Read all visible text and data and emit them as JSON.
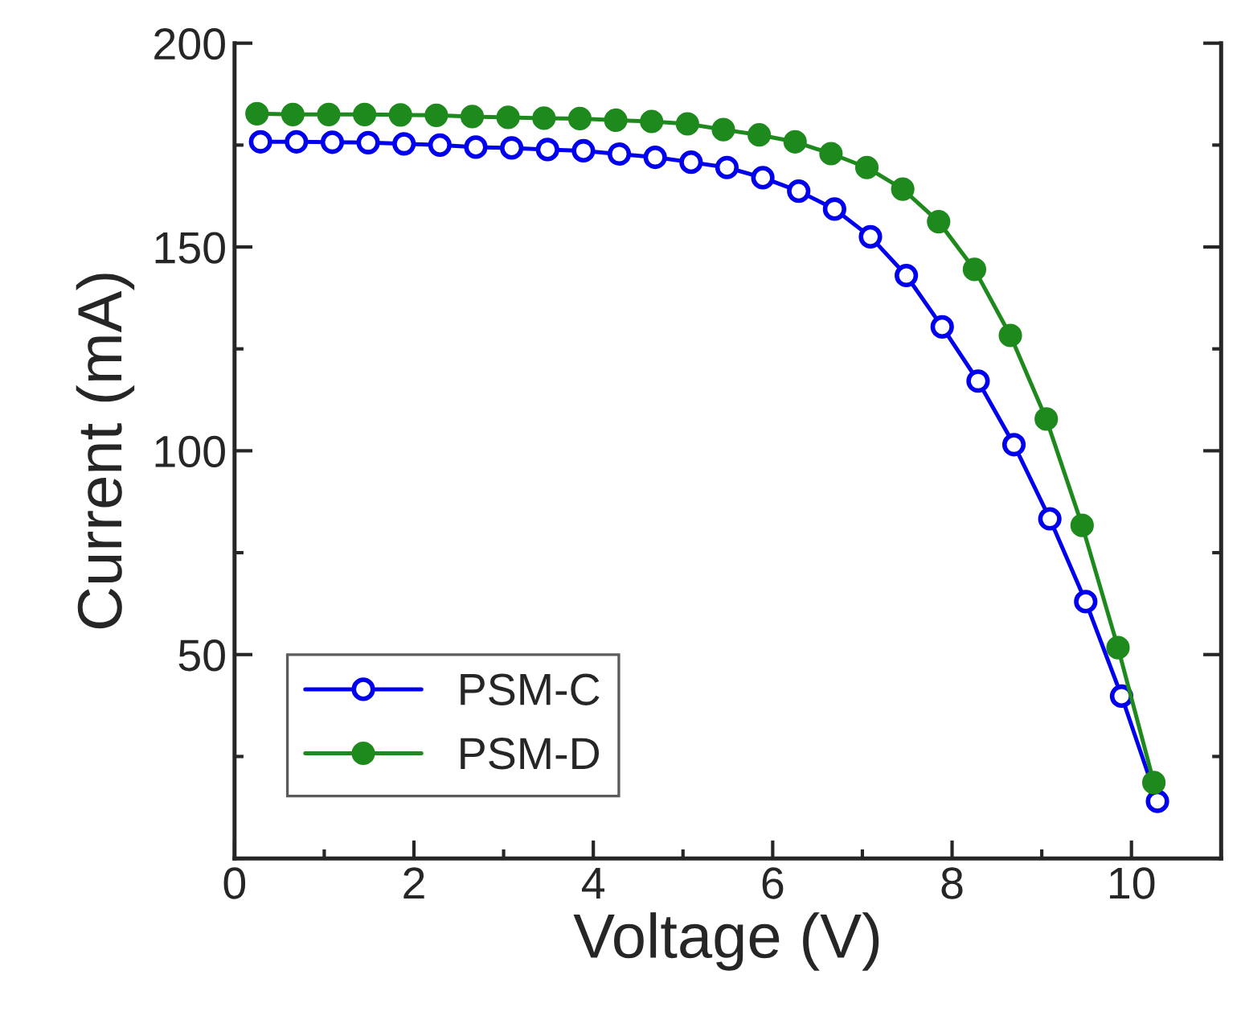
{
  "chart_data": {
    "type": "line",
    "xlabel": "Voltage (V)",
    "ylabel": "Current (mA)",
    "xlim": [
      0,
      11
    ],
    "xticks": [
      0,
      2,
      4,
      6,
      8,
      10
    ],
    "ylim": [
      0,
      200
    ],
    "yticks": [
      50,
      100,
      150,
      200
    ],
    "grid": false,
    "legend": "bottom left",
    "line_style": "solid",
    "series": [
      {
        "name": "PSM-C",
        "color": "#0000ee",
        "marker": "circle",
        "x": [
          0.29,
          0.69,
          1.09,
          1.49,
          1.89,
          2.29,
          2.69,
          3.09,
          3.49,
          3.89,
          4.29,
          4.69,
          5.09,
          5.49,
          5.89,
          6.29,
          6.69,
          7.09,
          7.49,
          7.89,
          8.29,
          8.69,
          9.09,
          9.49,
          9.89,
          10.29
        ],
        "values": [
          175.8,
          175.8,
          175.7,
          175.6,
          175.3,
          175.0,
          174.5,
          174.3,
          173.9,
          173.6,
          172.8,
          172.0,
          170.8,
          169.5,
          167.0,
          163.7,
          159.3,
          152.5,
          143.0,
          130.4,
          117.1,
          101.5,
          83.3,
          63.0,
          39.8,
          14.0
        ]
      },
      {
        "name": "PSM-D",
        "color": "#1e8a1e",
        "marker": "circle",
        "x": [
          0.25,
          0.65,
          1.05,
          1.45,
          1.85,
          2.25,
          2.65,
          3.05,
          3.45,
          3.85,
          4.25,
          4.65,
          5.05,
          5.45,
          5.85,
          6.25,
          6.65,
          7.05,
          7.45,
          7.85,
          8.25,
          8.65,
          9.05,
          9.45,
          9.85,
          10.25
        ],
        "values": [
          182.7,
          182.5,
          182.5,
          182.5,
          182.4,
          182.3,
          182.0,
          181.8,
          181.6,
          181.5,
          181.1,
          180.8,
          180.2,
          178.8,
          177.5,
          175.8,
          172.9,
          169.5,
          164.2,
          156.2,
          144.5,
          128.3,
          107.8,
          81.7,
          51.7,
          18.6
        ]
      }
    ]
  }
}
